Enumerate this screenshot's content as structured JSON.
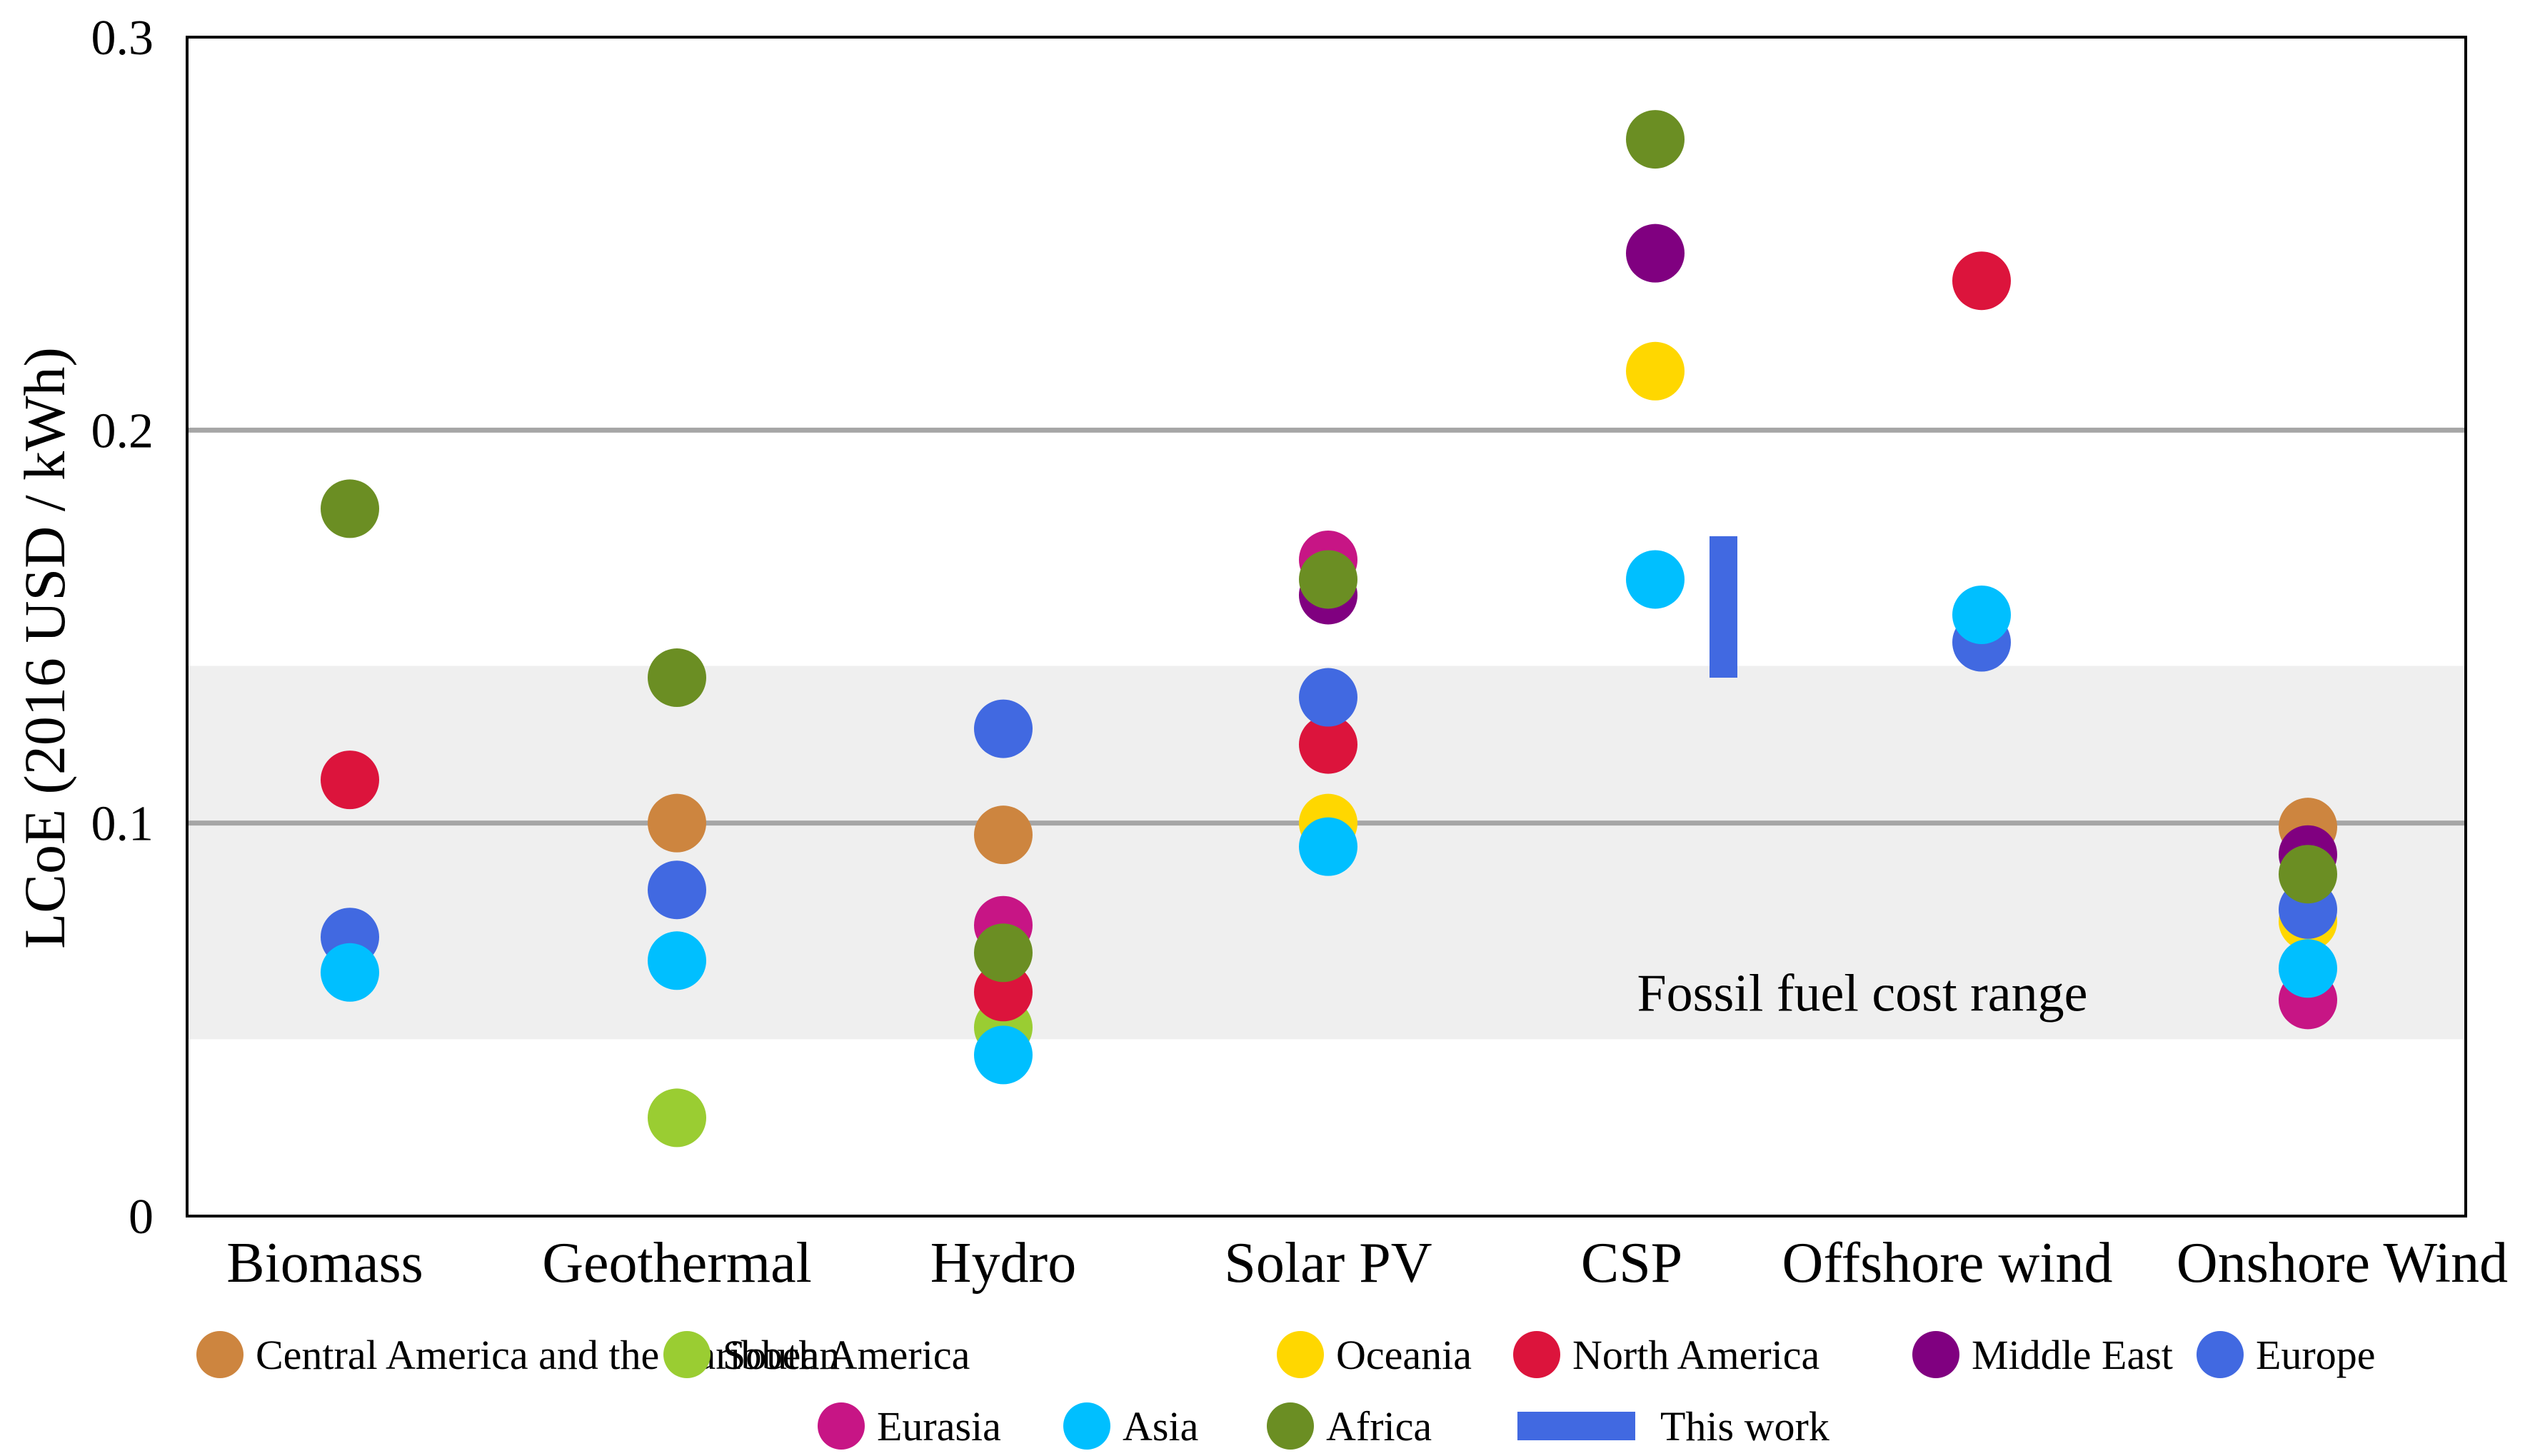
{
  "chart_data": {
    "type": "scatter",
    "title": "",
    "xlabel": "",
    "ylabel": "LCoE (2016 USD / kWh)",
    "ylim": [
      0,
      0.3
    ],
    "yticks": [
      {
        "value": 0,
        "label": "0"
      },
      {
        "value": 0.1,
        "label": "0.1"
      },
      {
        "value": 0.2,
        "label": "0.2"
      },
      {
        "value": 0.3,
        "label": "0.3"
      }
    ],
    "gridlines": [
      0.1,
      0.2
    ],
    "categories": [
      "Biomass",
      "Geothermal",
      "Hydro",
      "Solar PV",
      "CSP",
      "Offshore wind",
      "Onshore Wind"
    ],
    "band": {
      "label": "Fossil fuel cost range",
      "low": 0.045,
      "high": 0.14
    },
    "series": [
      {
        "name": "Central America and the Caribbean",
        "color": "#CD853F",
        "points": [
          {
            "category": "Geothermal",
            "value": 0.1
          },
          {
            "category": "Hydro",
            "value": 0.097
          },
          {
            "category": "Onshore Wind",
            "value": 0.099
          }
        ]
      },
      {
        "name": "South America",
        "color": "#9ACD32",
        "points": [
          {
            "category": "Geothermal",
            "value": 0.025
          },
          {
            "category": "Hydro",
            "value": 0.048
          }
        ]
      },
      {
        "name": "Oceania",
        "color": "#FFD700",
        "points": [
          {
            "category": "Solar PV",
            "value": 0.1
          },
          {
            "category": "CSP",
            "value": 0.215
          },
          {
            "category": "Onshore Wind",
            "value": 0.075
          }
        ]
      },
      {
        "name": "North America",
        "color": "#DC143C",
        "points": [
          {
            "category": "Biomass",
            "value": 0.111
          },
          {
            "category": "Hydro",
            "value": 0.057
          },
          {
            "category": "Solar PV",
            "value": 0.12
          },
          {
            "category": "Offshore wind",
            "value": 0.238
          }
        ]
      },
      {
        "name": "Middle East",
        "color": "#800080",
        "points": [
          {
            "category": "Solar PV",
            "value": 0.158
          },
          {
            "category": "CSP",
            "value": 0.245
          },
          {
            "category": "Onshore Wind",
            "value": 0.092
          }
        ]
      },
      {
        "name": "Europe",
        "color": "#4169E1",
        "points": [
          {
            "category": "Biomass",
            "value": 0.071
          },
          {
            "category": "Geothermal",
            "value": 0.083
          },
          {
            "category": "Hydro",
            "value": 0.124
          },
          {
            "category": "Solar PV",
            "value": 0.132
          },
          {
            "category": "Offshore wind",
            "value": 0.146
          },
          {
            "category": "Onshore Wind",
            "value": 0.078
          }
        ]
      },
      {
        "name": "Eurasia",
        "color": "#C71585",
        "points": [
          {
            "category": "Hydro",
            "value": 0.074
          },
          {
            "category": "Solar PV",
            "value": 0.167
          },
          {
            "category": "Onshore Wind",
            "value": 0.055
          }
        ]
      },
      {
        "name": "Asia",
        "color": "#00BFFF",
        "points": [
          {
            "category": "Biomass",
            "value": 0.062
          },
          {
            "category": "Geothermal",
            "value": 0.065
          },
          {
            "category": "Hydro",
            "value": 0.041
          },
          {
            "category": "Solar PV",
            "value": 0.094
          },
          {
            "category": "CSP",
            "value": 0.162
          },
          {
            "category": "Offshore wind",
            "value": 0.153
          },
          {
            "category": "Onshore Wind",
            "value": 0.063
          }
        ]
      },
      {
        "name": "Africa",
        "color": "#6B8E23",
        "points": [
          {
            "category": "Biomass",
            "value": 0.18
          },
          {
            "category": "Geothermal",
            "value": 0.137
          },
          {
            "category": "Hydro",
            "value": 0.067
          },
          {
            "category": "Solar PV",
            "value": 0.162
          },
          {
            "category": "CSP",
            "value": 0.274
          },
          {
            "category": "Onshore Wind",
            "value": 0.087
          }
        ]
      }
    ],
    "this_work": {
      "name": "This work",
      "color": "#4169E1",
      "category": "CSP",
      "low": 0.137,
      "high": 0.173
    },
    "legend": {
      "placement": "bottom",
      "rows": [
        [
          "Central America and the Caribbean",
          "South America",
          "Oceania",
          "North America",
          "Middle East",
          "Europe"
        ],
        [
          "Eurasia",
          "Asia",
          "Africa",
          "This work"
        ]
      ]
    }
  }
}
